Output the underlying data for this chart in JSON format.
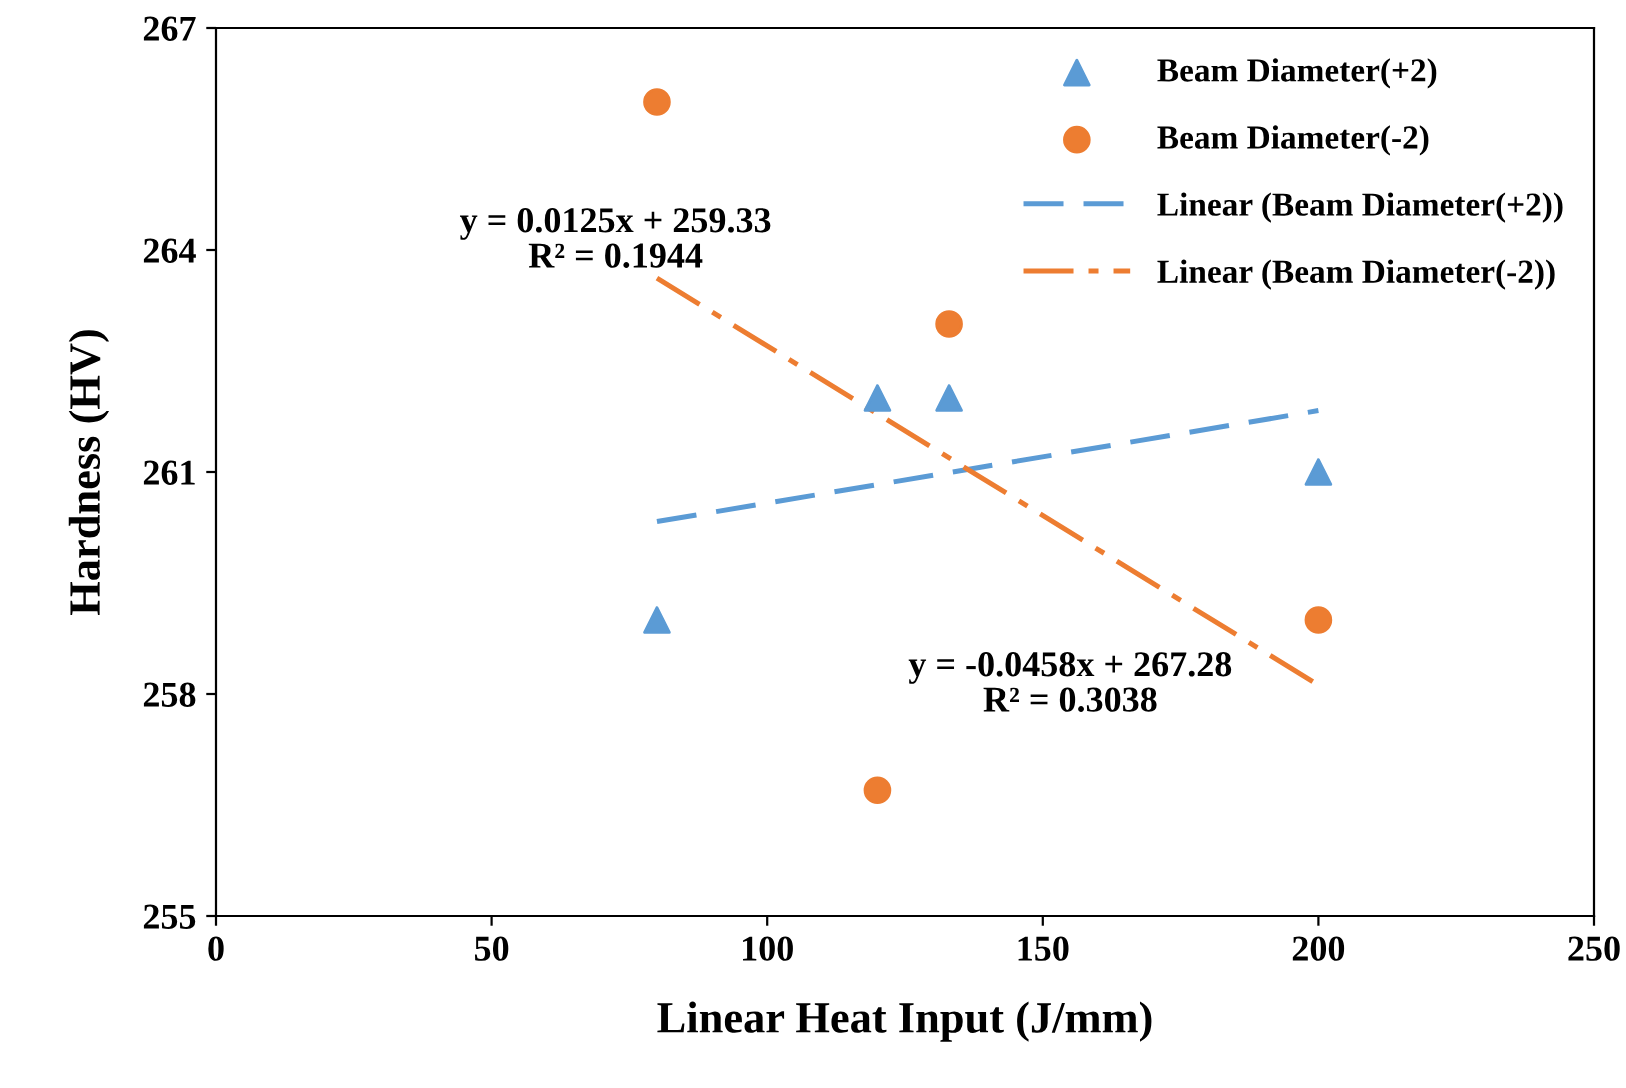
{
  "chart_data": {
    "type": "scatter",
    "xlabel": "Linear Heat Input (J/mm)",
    "ylabel": "Hardness (HV)",
    "xlim": [
      0,
      250
    ],
    "xticks": [
      0,
      50,
      100,
      150,
      200,
      250
    ],
    "ylim": [
      255,
      267
    ],
    "yticks": [
      255,
      258,
      261,
      264,
      267
    ],
    "grid": false,
    "legend": "top right",
    "series": [
      {
        "name": "Beam Diameter(+2)",
        "color": "#5b9bd5",
        "marker": "triangle",
        "x": [
          80,
          120,
          133,
          200
        ],
        "values": [
          259,
          262,
          262,
          261
        ]
      },
      {
        "name": "Beam Diameter(-2)",
        "color": "#ed7d31",
        "marker": "circle",
        "x": [
          80,
          120,
          133,
          200
        ],
        "values": [
          266,
          256.7,
          263,
          259
        ]
      },
      {
        "name": "Linear (Beam Diameter(+2))",
        "type": "line",
        "color": "#5b9bd5",
        "line_style": "dashed",
        "marker": "none",
        "x": [
          80,
          200
        ],
        "values": [
          260.33,
          261.83
        ]
      },
      {
        "name": "Linear (Beam Diameter(-2))",
        "type": "line",
        "color": "#ed7d31",
        "line_style": "dashdot",
        "marker": "none",
        "x": [
          80,
          200
        ],
        "values": [
          263.62,
          258.12
        ]
      }
    ],
    "annotations": [
      "y = 0.0125x + 259.33\nR² = 0.1944",
      "y = -0.0458x + 267.28\nR² = 0.3038"
    ]
  }
}
